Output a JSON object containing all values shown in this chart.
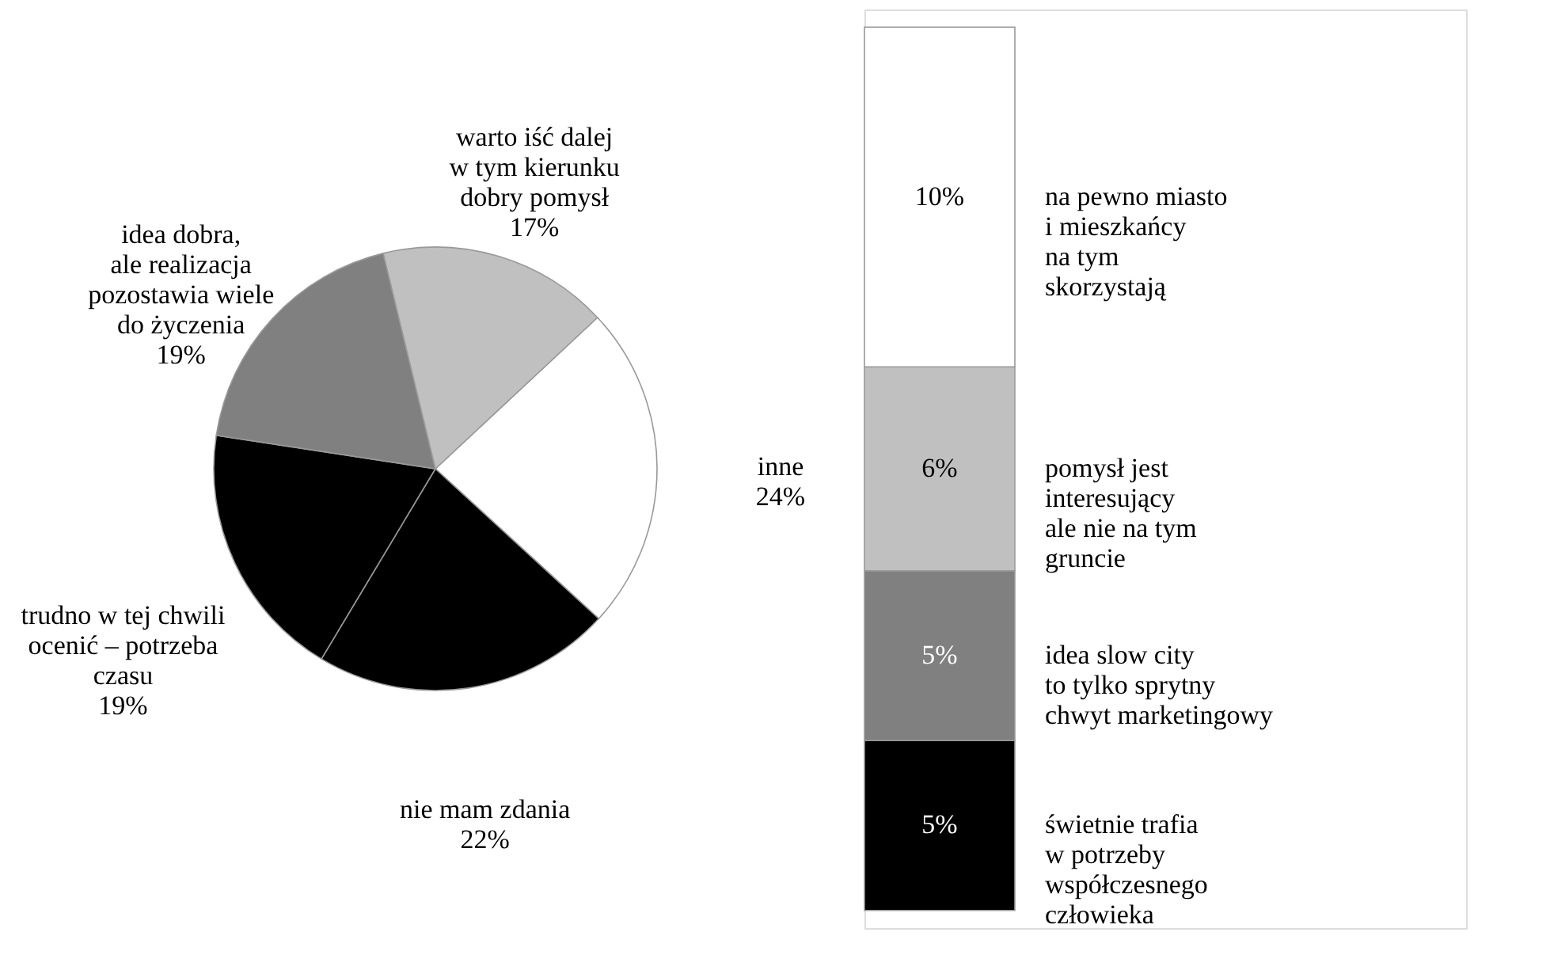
{
  "chart_data": [
    {
      "type": "pie",
      "categories": [
        "inne",
        "nie mam zdania",
        "trudno w tej chwili\nocenić – potrzeba\nczasu",
        "idea dobra,\nale realizacja\npozostawia wiele\ndo życzenia",
        "warto iść dalej\nw tym kierunku\ndobry pomysł"
      ],
      "values": [
        24,
        22,
        19,
        19,
        17
      ],
      "colors": [
        "#ffffff",
        "#000000",
        "#000000",
        "#808080",
        "#c0c0c0"
      ],
      "value_labels": [
        "24%",
        "22%",
        "19%",
        "19%",
        "17%"
      ],
      "legend": false
    },
    {
      "type": "bar",
      "stacked": true,
      "categories": [
        null
      ],
      "series": [
        {
          "name": "świetnie trafia\nw potrzeby\nwspółczesnego\nczłowieka",
          "color": "#000000",
          "values": [
            5
          ],
          "value_labels": [
            "5%"
          ]
        },
        {
          "name": "idea slow city\nto tylko sprytny\nchwyt marketingowy",
          "color": "#808080",
          "values": [
            5
          ],
          "value_labels": [
            "5%"
          ]
        },
        {
          "name": "pomysł jest\ninteresujący\nale nie na tym\ngruncie",
          "color": "#c0c0c0",
          "values": [
            6
          ],
          "value_labels": [
            "6%"
          ]
        },
        {
          "name": "na pewno miasto\ni mieszkańcy\nna tym\nskorzystają",
          "color": "#ffffff",
          "values": [
            10
          ],
          "value_labels": [
            "10%"
          ]
        }
      ],
      "legend": false
    }
  ]
}
